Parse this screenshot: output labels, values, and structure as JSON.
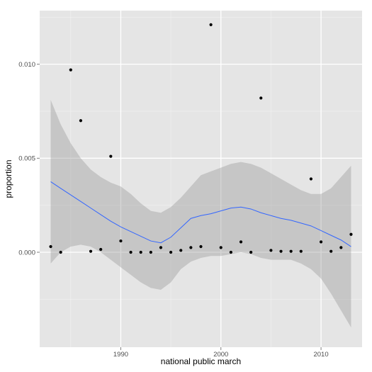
{
  "chart_data": {
    "type": "scatter",
    "xlabel": "national public march",
    "ylabel": "proportion",
    "xlim": [
      1981.9,
      2014.1
    ],
    "ylim": [
      -0.00505,
      0.01285
    ],
    "x_ticks": [
      1990,
      2000,
      2010
    ],
    "x_tick_labels": [
      "1990",
      "2000",
      "2010"
    ],
    "y_ticks": [
      0.0,
      0.005,
      0.01
    ],
    "y_tick_labels": [
      "0.000",
      "0.005",
      "0.010"
    ],
    "grid": true,
    "legend": "none",
    "points": {
      "x": [
        1983,
        1984,
        1985,
        1986,
        1987,
        1988,
        1989,
        1990,
        1991,
        1992,
        1993,
        1994,
        1995,
        1996,
        1997,
        1998,
        1999,
        2000,
        2001,
        2002,
        2003,
        2004,
        2005,
        2006,
        2007,
        2008,
        2009,
        2010,
        2011,
        2012,
        2013
      ],
      "y": [
        0.0003,
        0.0,
        0.0097,
        0.007,
        5e-05,
        0.00015,
        0.0051,
        0.0006,
        0.0,
        0.0,
        0.0,
        0.00025,
        0.0,
        0.0001,
        0.00025,
        0.0003,
        0.0121,
        0.00025,
        0.0,
        0.00055,
        0.0,
        0.0082,
        0.0001,
        5e-05,
        5e-05,
        5e-05,
        0.0039,
        0.00055,
        5e-05,
        0.00025,
        0.00095
      ]
    },
    "smooth": {
      "x": [
        1983,
        1984,
        1985,
        1986,
        1987,
        1988,
        1989,
        1990,
        1991,
        1992,
        1993,
        1994,
        1995,
        1996,
        1997,
        1998,
        1999,
        2000,
        2001,
        2002,
        2003,
        2004,
        2005,
        2006,
        2007,
        2008,
        2009,
        2010,
        2011,
        2012,
        2013
      ],
      "fit": [
        0.00375,
        0.0034,
        0.00305,
        0.0027,
        0.00235,
        0.002,
        0.00165,
        0.00135,
        0.0011,
        0.00085,
        0.0006,
        0.0005,
        0.0008,
        0.0013,
        0.0018,
        0.00195,
        0.00205,
        0.0022,
        0.00235,
        0.0024,
        0.0023,
        0.0021,
        0.00195,
        0.0018,
        0.0017,
        0.00155,
        0.0014,
        0.00115,
        0.0009,
        0.00065,
        0.0003
      ],
      "upper": [
        0.0081,
        0.0068,
        0.0058,
        0.005,
        0.0044,
        0.004,
        0.0037,
        0.0035,
        0.0031,
        0.0026,
        0.0022,
        0.0021,
        0.0024,
        0.0029,
        0.0035,
        0.0041,
        0.0043,
        0.0045,
        0.0047,
        0.0048,
        0.0047,
        0.0045,
        0.0042,
        0.0039,
        0.0036,
        0.0033,
        0.0031,
        0.0031,
        0.0034,
        0.004,
        0.0046
      ],
      "lower": [
        -0.0006,
        0.0,
        0.0003,
        0.0004,
        0.0003,
        0.0,
        -0.0004,
        -0.0008,
        -0.0012,
        -0.0016,
        -0.0019,
        -0.002,
        -0.0016,
        -0.0009,
        -0.0005,
        -0.0003,
        -0.0002,
        -0.0002,
        -0.0001,
        0.0,
        -0.0001,
        -0.0003,
        -0.0004,
        -0.0004,
        -0.0004,
        -0.0006,
        -0.0009,
        -0.0014,
        -0.0022,
        -0.0031,
        -0.004
      ]
    },
    "colors": {
      "panel": "#e5e5e5",
      "grid_major": "#ffffff",
      "grid_minor": "#f2f2f2",
      "point": "#000000",
      "fit_line": "#3366ff",
      "ribbon": "#999999"
    }
  }
}
